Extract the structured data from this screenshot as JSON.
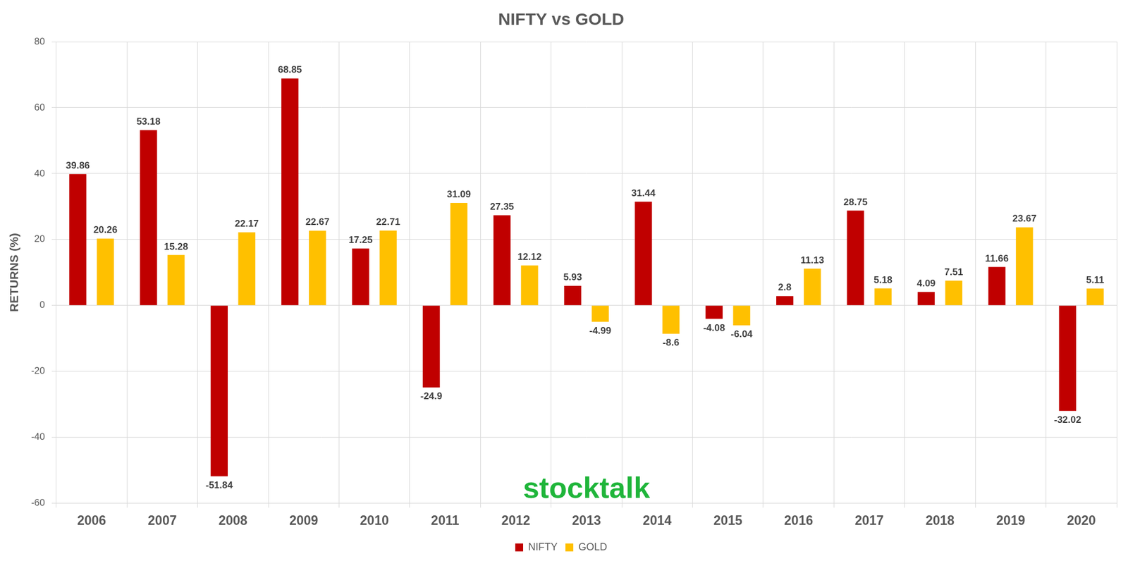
{
  "chart_data": {
    "type": "bar",
    "title": "NIFTY vs GOLD",
    "y_label": "RETURNS (%)",
    "categories": [
      "2006",
      "2007",
      "2008",
      "2009",
      "2010",
      "2011",
      "2012",
      "2013",
      "2014",
      "2015",
      "2016",
      "2017",
      "2018",
      "2019",
      "2020"
    ],
    "series": [
      {
        "name": "NIFTY",
        "color": "#c00000",
        "values": [
          39.86,
          53.18,
          -51.84,
          68.85,
          17.25,
          -24.9,
          27.35,
          5.93,
          31.44,
          -4.08,
          2.8,
          28.75,
          4.09,
          11.66,
          -32.02
        ]
      },
      {
        "name": "GOLD",
        "color": "#ffc000",
        "values": [
          20.26,
          15.28,
          22.17,
          22.67,
          22.71,
          31.09,
          12.12,
          -4.99,
          -8.6,
          -6.04,
          11.13,
          5.18,
          7.51,
          23.67,
          5.11
        ]
      }
    ],
    "ylim": [
      -60,
      80
    ],
    "yticks": [
      -60,
      -40,
      -20,
      0,
      20,
      40,
      60,
      80
    ],
    "grid": true,
    "legend": "bottom",
    "data_labels": true,
    "annotations": [
      "stocktalk"
    ]
  }
}
